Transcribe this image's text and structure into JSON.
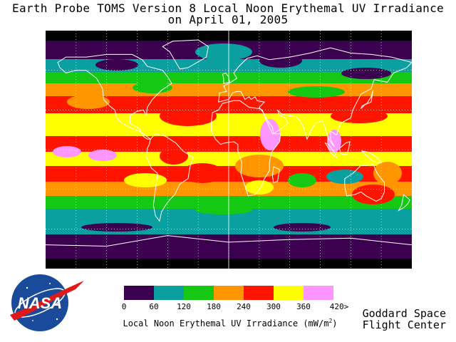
{
  "title": {
    "line1": "Earth Probe TOMS Version 8 Local Noon Erythemal UV Irradiance",
    "line2": "on April 01, 2005"
  },
  "legend": {
    "colors": [
      "#3c0050",
      "#0aa0a0",
      "#14c814",
      "#ff9600",
      "#ff1400",
      "#ffff00",
      "#ff96ff"
    ],
    "ticks": [
      "0",
      "60",
      "120",
      "180",
      "240",
      "300",
      "360",
      "420>"
    ],
    "caption_text": "Local Noon Erythemal UV Irradiance (mW/m",
    "caption_sup": "2",
    "caption_end": ")"
  },
  "credit": {
    "line1": "Goddard Space",
    "line2": "Flight Center"
  },
  "logo": {
    "text": "NASA"
  },
  "map_colors": {
    "nodata": "#000000",
    "grid": "#ffffff",
    "coast": "#ffffff"
  }
}
